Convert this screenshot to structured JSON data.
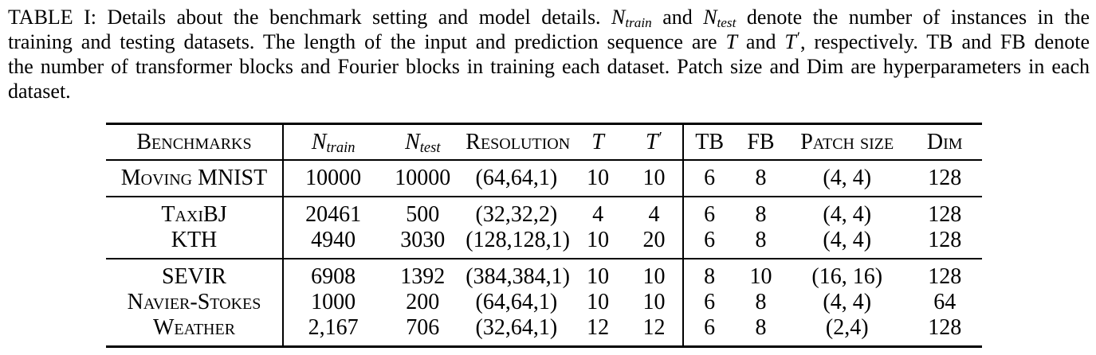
{
  "colors": {
    "ink": "#000000",
    "background": "#ffffff"
  },
  "caption": {
    "lines": [
      {
        "last": false,
        "segments": [
          {
            "text": "TABLE I: Details about the benchmark setting and model details. "
          },
          {
            "math": "N",
            "sub": "train"
          },
          {
            "text": " and "
          },
          {
            "math": "N",
            "sub": "test"
          },
          {
            "text": " denote the number of instances in the"
          }
        ]
      },
      {
        "last": false,
        "segments": [
          {
            "text": "training and testing datasets. The length of the input and prediction sequence are "
          },
          {
            "math": "T"
          },
          {
            "text": " and "
          },
          {
            "math": "T",
            "prime": "′"
          },
          {
            "text": ", respectively. TB and FB denote"
          }
        ]
      },
      {
        "last": false,
        "segments": [
          {
            "text": "the number of transformer blocks and Fourier blocks in training each dataset. Patch size and Dim are hyperparameters in each"
          }
        ]
      },
      {
        "last": true,
        "segments": [
          {
            "text": "dataset."
          }
        ]
      }
    ]
  },
  "table": {
    "columns": [
      {
        "key": "benchmarks",
        "sc": "Benchmarks"
      },
      {
        "key": "n-train",
        "math": "N",
        "sub": "train"
      },
      {
        "key": "n-test",
        "math": "N",
        "sub": "test"
      },
      {
        "key": "resolution",
        "sc": "Resolution"
      },
      {
        "key": "t",
        "math": "T"
      },
      {
        "key": "t-prime",
        "math": "T",
        "prime": "′"
      },
      {
        "key": "tb",
        "sc": "TB"
      },
      {
        "key": "fb",
        "sc": "FB"
      },
      {
        "key": "patch-size",
        "sc": "Patch size"
      },
      {
        "key": "dim",
        "sc": "Dim"
      }
    ],
    "groups": [
      {
        "rows": [
          {
            "cells": [
              "Moving MNIST",
              "10000",
              "10000",
              "(64,64,1)",
              "10",
              "10",
              "6",
              "8",
              "(4, 4)",
              "128"
            ]
          }
        ]
      },
      {
        "rows": [
          {
            "cells": [
              "TaxiBJ",
              "20461",
              "500",
              "(32,32,2)",
              "4",
              "4",
              "6",
              "8",
              "(4, 4)",
              "128"
            ]
          },
          {
            "cells": [
              "KTH",
              "4940",
              "3030",
              "(128,128,1)",
              "10",
              "20",
              "6",
              "8",
              "(4, 4)",
              "128"
            ]
          }
        ]
      },
      {
        "rows": [
          {
            "cells": [
              "SEVIR",
              "6908",
              "1392",
              "(384,384,1)",
              "10",
              "10",
              "8",
              "10",
              "(16, 16)",
              "128"
            ]
          },
          {
            "cells": [
              "Navier-Stokes",
              "1000",
              "200",
              "(64,64,1)",
              "10",
              "10",
              "6",
              "8",
              "(4, 4)",
              "64"
            ]
          },
          {
            "cells": [
              "Weather",
              "2,167",
              "706",
              "(32,64,1)",
              "12",
              "12",
              "6",
              "8",
              "(2,4)",
              "128"
            ]
          }
        ]
      }
    ]
  }
}
